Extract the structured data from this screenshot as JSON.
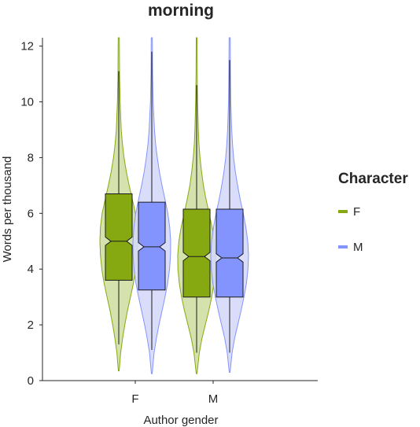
{
  "chart_data": {
    "type": "violin",
    "title": "morning",
    "xlabel": "Author gender",
    "ylabel": "Words per thousand",
    "ylim": [
      0,
      12.3
    ],
    "yticks": [
      0,
      2,
      4,
      6,
      8,
      10,
      12
    ],
    "grid": false,
    "categories": [
      "F",
      "M"
    ],
    "legend": {
      "title": "Character",
      "placement": "right"
    },
    "series": [
      {
        "name": "F",
        "color": "#86A911",
        "fill": "#D1DFA4",
        "groups": [
          {
            "category": "F",
            "min": 1.3,
            "q1": 3.6,
            "median": 5.0,
            "q3": 6.7,
            "max": 11.1,
            "notch_low": 4.85,
            "notch_high": 5.15,
            "range": [
              0.35,
              12.3
            ],
            "density": [
              [
                0.35,
                0.02
              ],
              [
                1.0,
                0.1
              ],
              [
                1.5,
                0.2
              ],
              [
                2.0,
                0.32
              ],
              [
                2.5,
                0.46
              ],
              [
                3.0,
                0.62
              ],
              [
                3.5,
                0.78
              ],
              [
                4.0,
                0.9
              ],
              [
                4.5,
                0.97
              ],
              [
                5.0,
                1.0
              ],
              [
                5.5,
                0.97
              ],
              [
                6.0,
                0.88
              ],
              [
                6.5,
                0.72
              ],
              [
                7.0,
                0.55
              ],
              [
                7.5,
                0.4
              ],
              [
                8.0,
                0.28
              ],
              [
                8.5,
                0.19
              ],
              [
                9.0,
                0.13
              ],
              [
                10.0,
                0.07
              ],
              [
                11.0,
                0.04
              ],
              [
                12.3,
                0.03
              ]
            ]
          },
          {
            "category": "M",
            "min": 1.0,
            "q1": 3.0,
            "median": 4.45,
            "q3": 6.15,
            "max": 10.6,
            "notch_low": 4.3,
            "notch_high": 4.6,
            "range": [
              0.25,
              12.3
            ],
            "density": [
              [
                0.25,
                0.02
              ],
              [
                1.0,
                0.14
              ],
              [
                1.5,
                0.28
              ],
              [
                2.0,
                0.46
              ],
              [
                2.5,
                0.64
              ],
              [
                3.0,
                0.8
              ],
              [
                3.5,
                0.92
              ],
              [
                4.0,
                0.99
              ],
              [
                4.5,
                1.0
              ],
              [
                5.0,
                0.94
              ],
              [
                5.5,
                0.82
              ],
              [
                6.0,
                0.66
              ],
              [
                6.5,
                0.5
              ],
              [
                7.0,
                0.36
              ],
              [
                7.5,
                0.26
              ],
              [
                8.0,
                0.18
              ],
              [
                8.5,
                0.12
              ],
              [
                9.0,
                0.09
              ],
              [
                10.0,
                0.05
              ],
              [
                11.0,
                0.03
              ],
              [
                12.3,
                0.02
              ]
            ]
          }
        ]
      },
      {
        "name": "M",
        "color": "#8494FF",
        "fill": "#D5D9FA",
        "groups": [
          {
            "category": "F",
            "min": 1.1,
            "q1": 3.25,
            "median": 4.8,
            "q3": 6.4,
            "max": 11.8,
            "notch_low": 4.65,
            "notch_high": 4.95,
            "range": [
              0.25,
              12.3
            ],
            "density": [
              [
                0.25,
                0.02
              ],
              [
                1.0,
                0.12
              ],
              [
                1.5,
                0.24
              ],
              [
                2.0,
                0.38
              ],
              [
                2.5,
                0.54
              ],
              [
                3.0,
                0.7
              ],
              [
                3.5,
                0.84
              ],
              [
                4.0,
                0.94
              ],
              [
                4.5,
                0.99
              ],
              [
                5.0,
                1.0
              ],
              [
                5.5,
                0.95
              ],
              [
                6.0,
                0.85
              ],
              [
                6.5,
                0.7
              ],
              [
                7.0,
                0.54
              ],
              [
                7.5,
                0.4
              ],
              [
                8.0,
                0.29
              ],
              [
                8.5,
                0.2
              ],
              [
                9.0,
                0.14
              ],
              [
                10.0,
                0.07
              ],
              [
                11.0,
                0.04
              ],
              [
                12.3,
                0.03
              ]
            ]
          },
          {
            "category": "M",
            "min": 1.0,
            "q1": 3.0,
            "median": 4.4,
            "q3": 6.15,
            "max": 11.5,
            "notch_low": 4.25,
            "notch_high": 4.55,
            "range": [
              0.3,
              12.3
            ],
            "density": [
              [
                0.3,
                0.02
              ],
              [
                1.0,
                0.13
              ],
              [
                1.5,
                0.26
              ],
              [
                2.0,
                0.43
              ],
              [
                2.5,
                0.6
              ],
              [
                3.0,
                0.76
              ],
              [
                3.5,
                0.89
              ],
              [
                4.0,
                0.97
              ],
              [
                4.5,
                1.0
              ],
              [
                5.0,
                0.96
              ],
              [
                5.5,
                0.86
              ],
              [
                6.0,
                0.72
              ],
              [
                6.5,
                0.56
              ],
              [
                7.0,
                0.42
              ],
              [
                7.5,
                0.3
              ],
              [
                8.0,
                0.21
              ],
              [
                8.5,
                0.15
              ],
              [
                9.0,
                0.11
              ],
              [
                10.0,
                0.06
              ],
              [
                11.0,
                0.04
              ],
              [
                12.3,
                0.03
              ]
            ]
          }
        ]
      }
    ]
  }
}
